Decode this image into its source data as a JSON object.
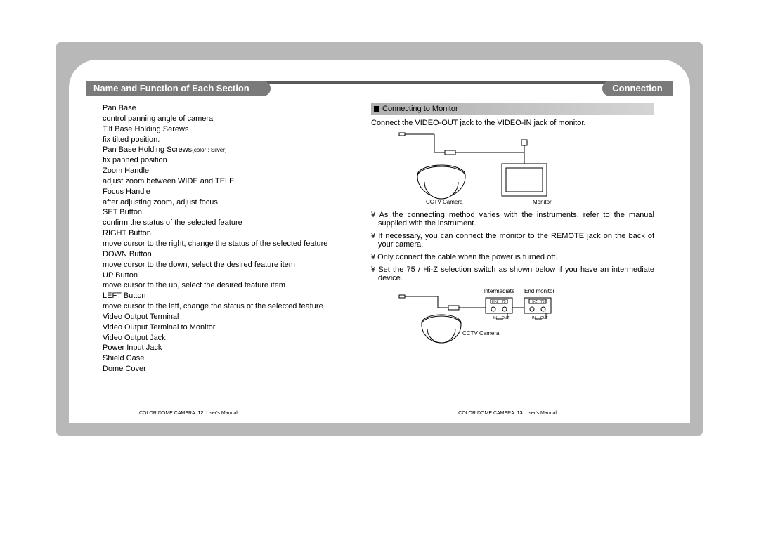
{
  "headers": {
    "left": "Name and Function of Each Section",
    "right": "Connection"
  },
  "left_items": [
    {
      "name": "Pan Base",
      "desc": "control panning angle of camera"
    },
    {
      "name": "Tilt Base Holding Serews",
      "desc": "fix tilted position."
    },
    {
      "name": "Pan Base Holding Screws",
      "note": "(color : Silver)",
      "desc": "fix panned position"
    },
    {
      "name": "Zoom Handle",
      "desc": "adjust zoom between WIDE and TELE"
    },
    {
      "name": "Focus Handle",
      "desc": "after adjusting zoom, adjust focus"
    },
    {
      "name": "SET Button",
      "desc": "confirm the status of the selected feature"
    },
    {
      "name": "RIGHT Button",
      "desc": "move cursor to the right, change the status of the selected feature"
    },
    {
      "name": "DOWN Button",
      "desc": "move cursor to the down, select the desired feature item"
    },
    {
      "name": "UP Button",
      "desc": "move cursor to the up, select the desired feature item"
    },
    {
      "name": "LEFT Button",
      "desc": "move cursor to the left, change the status of the selected feature"
    },
    {
      "name": "Video Output Terminal",
      "desc": ""
    },
    {
      "name": "Video Output Terminal to Monitor",
      "desc": ""
    },
    {
      "name": "Video Output Jack",
      "desc": ""
    },
    {
      "name": "Power Input Jack",
      "desc": ""
    },
    {
      "name": "Shield Case",
      "desc": ""
    },
    {
      "name": "Dome Cover",
      "desc": ""
    }
  ],
  "right": {
    "section": "Connecting to Monitor",
    "intro": "Connect the VIDEO-OUT jack to the VIDEO-IN jack of monitor.",
    "diagram1_labels": {
      "camera": "CCTV Camera",
      "monitor": "Monitor"
    },
    "notes": [
      "As the connecting method varies with the instruments, refer to the manual supplied with the instrument.",
      "If necessary, you can connect the monitor to the REMOTE jack on the back of your camera.",
      "Only connect the cable when the power is turned off.",
      "Set the 75 / Hi-Z selection switch as shown below if you have an intermediate device."
    ],
    "diagram2_labels": {
      "camera": "CCTV Camera",
      "intermediate": "Intermediate",
      "end": "End monitor",
      "hiz": "Hi-Z",
      "ohm": "75"
    }
  },
  "footer": {
    "product": "COLOR DOME CAMERA",
    "left_page": "12",
    "right_page": "13",
    "suffix": "User's Manual"
  },
  "bullet": "¥",
  "colors": {
    "frame": "#b8b8b8",
    "page": "#ffffff",
    "header_bg": "#7a7a7a",
    "rule": "#5a5a5a",
    "sectionbar_start": "#b0b0b0",
    "sectionbar_end": "#d4d4d4",
    "text": "#000000"
  }
}
